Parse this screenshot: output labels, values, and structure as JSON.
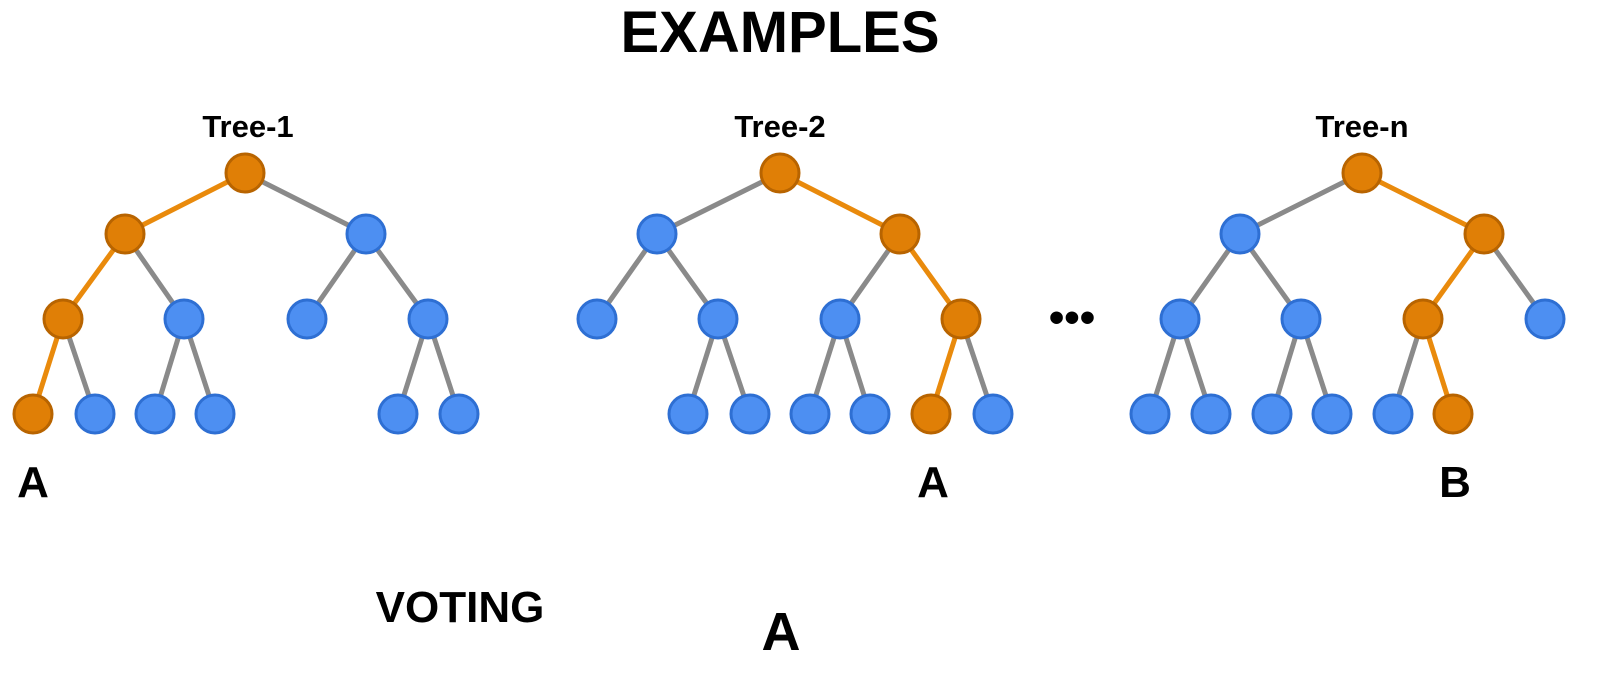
{
  "title": "EXAMPLES",
  "colors": {
    "orange": "#E07F06",
    "orange_stroke": "#B86400",
    "blue": "#4D8FF2",
    "blue_stroke": "#2E6FD3",
    "gray_edge": "#8A8A8A",
    "orange_edge": "#E98A0C",
    "bracket": "#9A9A9A"
  },
  "trees": [
    {
      "name": "Tree-1",
      "prediction": "A"
    },
    {
      "name": "Tree-2",
      "prediction": "A"
    },
    {
      "name": "Tree-n",
      "prediction": "B"
    }
  ],
  "ellipsis": "•••",
  "voting_label": "VOTING",
  "result": "A"
}
